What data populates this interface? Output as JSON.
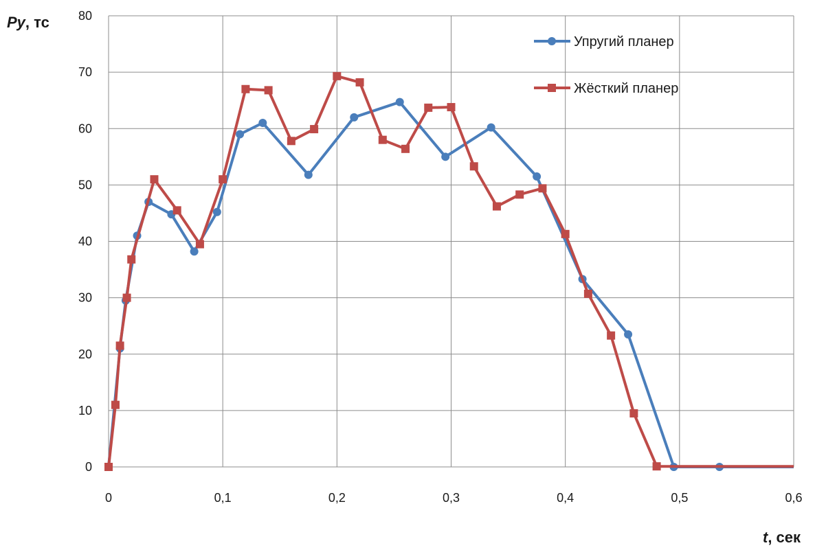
{
  "chart_data": {
    "type": "line",
    "title": "",
    "ylabel_var": "Py",
    "ylabel_unit": ", тс",
    "xlabel_var": "t",
    "xlabel_unit": ", сек",
    "xlim": [
      0,
      0.6
    ],
    "ylim": [
      0,
      80
    ],
    "x_ticks": [
      0,
      0.1,
      0.2,
      0.3,
      0.4,
      0.5,
      0.6
    ],
    "x_tick_labels": [
      "0",
      "0,1",
      "0,2",
      "0,3",
      "0,4",
      "0,5",
      "0,6"
    ],
    "y_ticks": [
      0,
      10,
      20,
      30,
      40,
      50,
      60,
      70,
      80
    ],
    "y_tick_labels": [
      "0",
      "10",
      "20",
      "30",
      "40",
      "50",
      "60",
      "70",
      "80"
    ],
    "grid": true,
    "legend_position": "top-right",
    "series": [
      {
        "name": "Упругий планер",
        "color": "#4A7EBB",
        "marker": "circle",
        "x": [
          0,
          0.01,
          0.015,
          0.025,
          0.035,
          0.055,
          0.075,
          0.095,
          0.115,
          0.135,
          0.175,
          0.215,
          0.255,
          0.295,
          0.335,
          0.375,
          0.415,
          0.455,
          0.495,
          0.535,
          0.6
        ],
        "y": [
          0,
          21,
          29.5,
          41,
          47,
          44.8,
          38.2,
          45.2,
          59,
          61,
          51.8,
          62,
          64.7,
          55,
          60.2,
          51.5,
          33.3,
          23.5,
          0,
          0,
          0
        ]
      },
      {
        "name": "Жёсткий планер",
        "color": "#BE4B48",
        "marker": "square",
        "x": [
          0,
          0.006,
          0.01,
          0.016,
          0.02,
          0.04,
          0.06,
          0.08,
          0.1,
          0.12,
          0.14,
          0.16,
          0.18,
          0.2,
          0.22,
          0.24,
          0.26,
          0.28,
          0.3,
          0.32,
          0.34,
          0.36,
          0.38,
          0.4,
          0.42,
          0.44,
          0.46,
          0.48,
          0.6
        ],
        "y": [
          0,
          11,
          21.5,
          30,
          36.8,
          51,
          45.5,
          39.5,
          51,
          67,
          66.8,
          57.8,
          59.9,
          69.3,
          68.2,
          58,
          56.4,
          63.7,
          63.8,
          53.3,
          46.2,
          48.3,
          49.4,
          41.3,
          30.7,
          23.3,
          9.5,
          0.1,
          0.1
        ]
      }
    ]
  }
}
